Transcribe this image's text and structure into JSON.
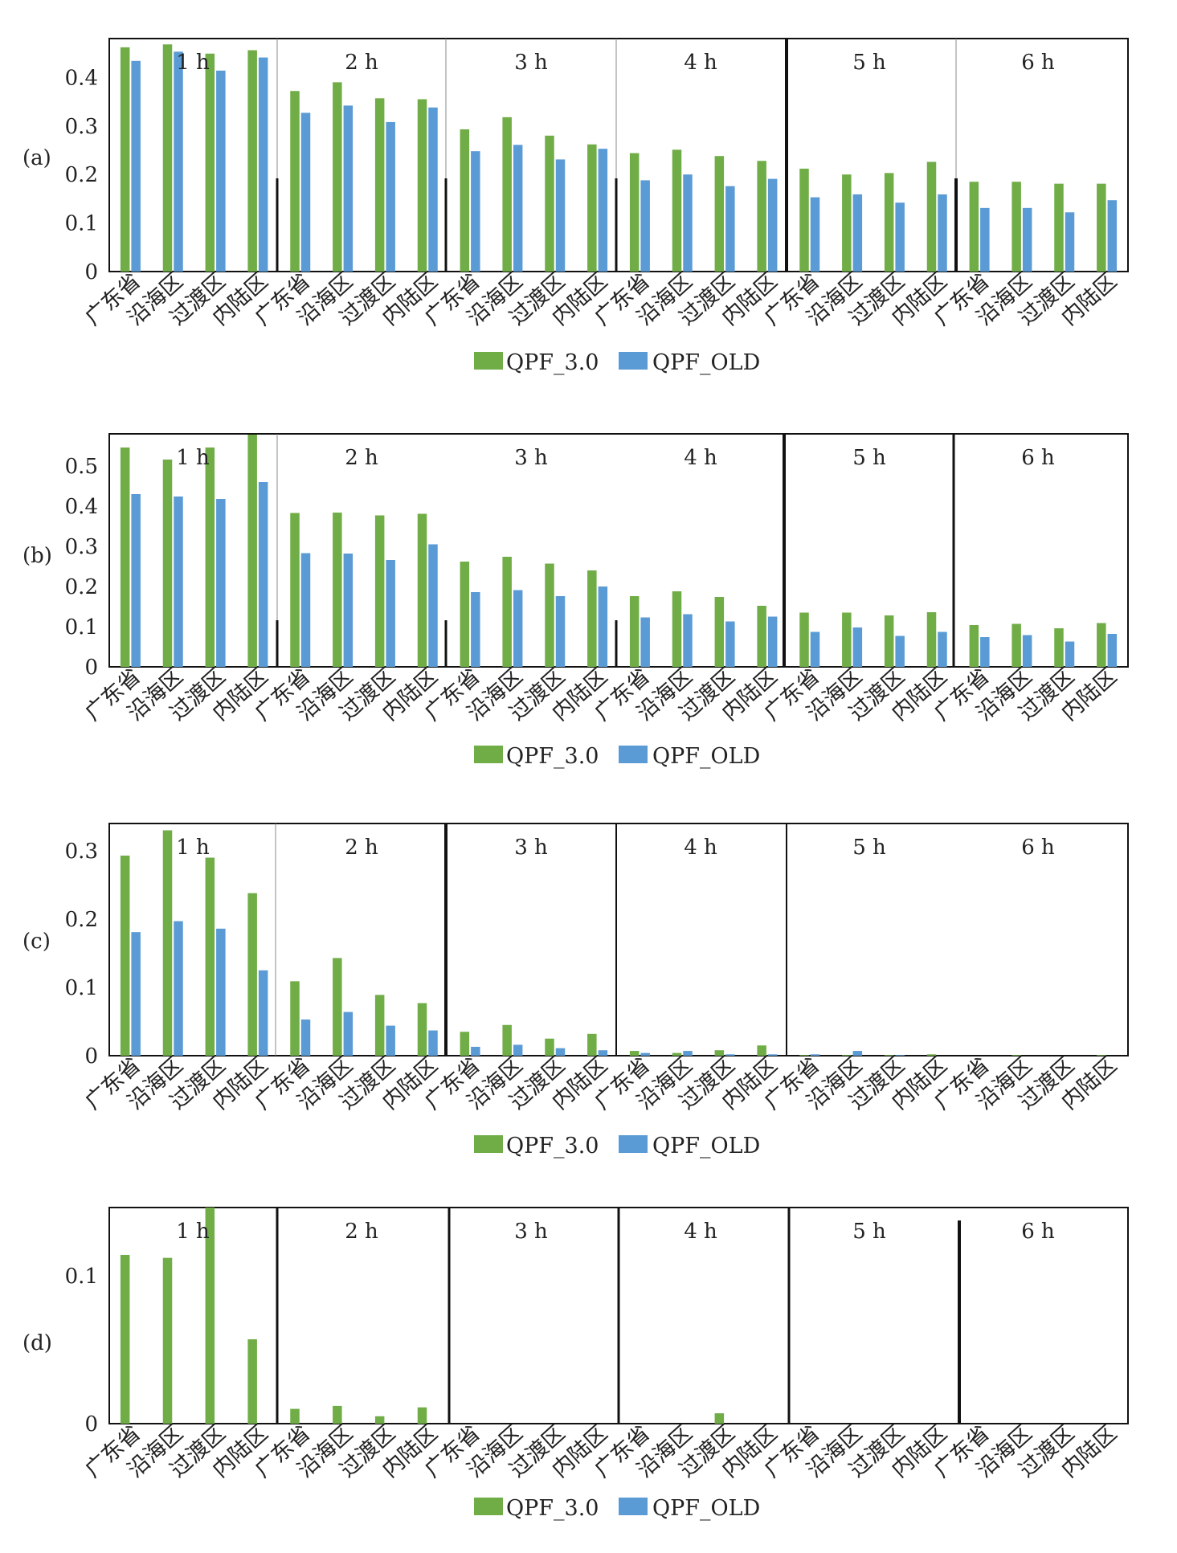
{
  "colors": {
    "qpf30": "#70AD47",
    "qpfold": "#5B9BD5",
    "frame": "#111111",
    "thin": "#888888"
  },
  "legend": {
    "qpf30": "QPF_3.0",
    "qpfold": "QPF_OLD"
  },
  "chart_data": [
    {
      "type": "bar",
      "panel_label": "(a)",
      "ylim": [
        0,
        0.48
      ],
      "yticks": [
        "0",
        "0.1",
        "0.2",
        "0.3",
        "0.4"
      ],
      "group_labels": [
        "1 h",
        "2 h",
        "3 h",
        "4 h",
        "5 h",
        "6 h"
      ],
      "categories": [
        "广东省",
        "沿海区",
        "过渡区",
        "内陆区",
        "广东省",
        "沿海区",
        "过渡区",
        "内陆区",
        "广东省",
        "沿海区",
        "过渡区",
        "内陆区",
        "广东省",
        "沿海区",
        "过渡区",
        "内陆区",
        "广东省",
        "沿海区",
        "过渡区",
        "内陆区",
        "广东省",
        "沿海区",
        "过渡区",
        "内陆区"
      ],
      "series": [
        {
          "name": "QPF_3.0",
          "values": [
            0.462,
            0.468,
            0.449,
            0.456,
            0.372,
            0.39,
            0.357,
            0.355,
            0.293,
            0.318,
            0.28,
            0.262,
            0.244,
            0.251,
            0.238,
            0.228,
            0.212,
            0.2,
            0.203,
            0.226,
            0.185,
            0.185,
            0.181,
            0.181
          ]
        },
        {
          "name": "QPF_OLD",
          "values": [
            0.434,
            0.453,
            0.414,
            0.441,
            0.327,
            0.342,
            0.308,
            0.338,
            0.248,
            0.261,
            0.231,
            0.253,
            0.188,
            0.2,
            0.176,
            0.191,
            0.153,
            0.159,
            0.142,
            0.159,
            0.131,
            0.131,
            0.122,
            0.147
          ]
        }
      ]
    },
    {
      "type": "bar",
      "panel_label": "(b)",
      "ylim": [
        0,
        0.58
      ],
      "yticks": [
        "0",
        "0.1",
        "0.2",
        "0.3",
        "0.4",
        "0.5"
      ],
      "group_labels": [
        "1 h",
        "2 h",
        "3 h",
        "4 h",
        "5 h",
        "6 h"
      ],
      "categories": [
        "广东省",
        "沿海区",
        "过渡区",
        "内陆区",
        "广东省",
        "沿海区",
        "过渡区",
        "内陆区",
        "广东省",
        "沿海区",
        "过渡区",
        "内陆区",
        "广东省",
        "沿海区",
        "过渡区",
        "内陆区",
        "广东省",
        "沿海区",
        "过渡区",
        "内陆区",
        "广东省",
        "沿海区",
        "过渡区",
        "内陆区"
      ],
      "series": [
        {
          "name": "QPF_3.0",
          "values": [
            0.546,
            0.516,
            0.546,
            0.578,
            0.383,
            0.384,
            0.377,
            0.381,
            0.262,
            0.274,
            0.257,
            0.24,
            0.176,
            0.188,
            0.174,
            0.152,
            0.135,
            0.135,
            0.128,
            0.136,
            0.104,
            0.107,
            0.096,
            0.109
          ]
        },
        {
          "name": "QPF_OLD",
          "values": [
            0.43,
            0.424,
            0.418,
            0.46,
            0.283,
            0.282,
            0.266,
            0.305,
            0.186,
            0.191,
            0.176,
            0.2,
            0.123,
            0.131,
            0.113,
            0.125,
            0.087,
            0.098,
            0.077,
            0.087,
            0.074,
            0.079,
            0.063,
            0.082
          ]
        }
      ]
    },
    {
      "type": "bar",
      "panel_label": "(c)",
      "ylim": [
        0,
        0.34
      ],
      "yticks": [
        "0",
        "0.1",
        "0.2",
        "0.3"
      ],
      "group_labels": [
        "1 h",
        "2 h",
        "3 h",
        "4 h",
        "5 h",
        "6 h"
      ],
      "categories": [
        "广东省",
        "沿海区",
        "过渡区",
        "内陆区",
        "广东省",
        "沿海区",
        "过渡区",
        "内陆区",
        "广东省",
        "沿海区",
        "过渡区",
        "内陆区",
        "广东省",
        "沿海区",
        "过渡区",
        "内陆区",
        "广东省",
        "沿海区",
        "过渡区",
        "内陆区",
        "广东省",
        "沿海区",
        "过渡区",
        "内陆区"
      ],
      "series": [
        {
          "name": "QPF_3.0",
          "values": [
            0.293,
            0.33,
            0.29,
            0.238,
            0.109,
            0.143,
            0.089,
            0.077,
            0.035,
            0.045,
            0.025,
            0.032,
            0.007,
            0.004,
            0.008,
            0.015,
            0.001,
            0.001,
            0.001,
            0.002,
            0.0,
            0.001,
            0.0,
            0.001
          ]
        },
        {
          "name": "QPF_OLD",
          "values": [
            0.181,
            0.197,
            0.186,
            0.125,
            0.053,
            0.064,
            0.044,
            0.037,
            0.013,
            0.016,
            0.011,
            0.008,
            0.004,
            0.007,
            0.002,
            0.002,
            0.002,
            0.007,
            0.001,
            0.0,
            0.0,
            0.0,
            0.0,
            0.0
          ]
        }
      ]
    },
    {
      "type": "bar",
      "panel_label": "(d)",
      "ylim": [
        0,
        0.146
      ],
      "yticks": [
        "0",
        "0.1"
      ],
      "group_labels": [
        "1 h",
        "2 h",
        "3 h",
        "4 h",
        "5 h",
        "6 h"
      ],
      "categories": [
        "广东省",
        "沿海区",
        "过渡区",
        "内陆区",
        "广东省",
        "沿海区",
        "过渡区",
        "内陆区",
        "广东省",
        "沿海区",
        "过渡区",
        "内陆区",
        "广东省",
        "沿海区",
        "过渡区",
        "内陆区",
        "广东省",
        "沿海区",
        "过渡区",
        "内陆区",
        "广东省",
        "沿海区",
        "过渡区",
        "内陆区"
      ],
      "series": [
        {
          "name": "QPF_3.0",
          "values": [
            0.114,
            0.112,
            0.146,
            0.057,
            0.01,
            0.012,
            0.005,
            0.011,
            0.0,
            0.0,
            0.0,
            0.0,
            0.0,
            0.0,
            0.007,
            0.0,
            0.0,
            0.0,
            0.0,
            0.0,
            0.0,
            0.0,
            0.0,
            0.0
          ]
        },
        {
          "name": "QPF_OLD",
          "values": [
            0.0,
            0.0,
            0.0,
            0.0,
            0.0,
            0.0,
            0.0,
            0.0,
            0.0,
            0.0,
            0.0,
            0.0,
            0.0,
            0.0,
            0.0,
            0.0,
            0.0,
            0.0,
            0.0,
            0.0,
            0.0,
            0.0,
            0.0,
            0.0
          ]
        }
      ]
    }
  ]
}
